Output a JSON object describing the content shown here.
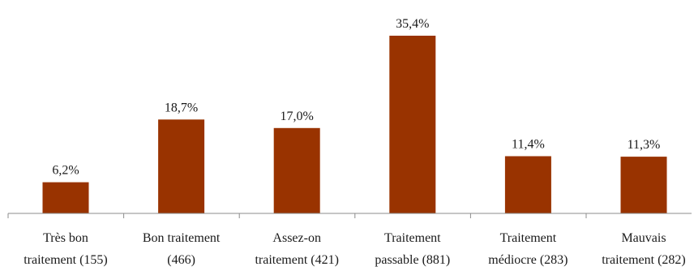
{
  "chart_data": {
    "type": "bar",
    "categories": [
      [
        "Très bon",
        "traitement (155)"
      ],
      [
        "Bon traitement",
        "(466)"
      ],
      [
        "Assez-on",
        "traitement (421)"
      ],
      [
        "Traitement",
        "passable (881)"
      ],
      [
        "Traitement",
        "médiocre (283)"
      ],
      [
        "Mauvais",
        "traitement (282)"
      ]
    ],
    "values": [
      6.2,
      18.7,
      17.0,
      35.4,
      11.4,
      11.3
    ],
    "value_labels": [
      "6,2%",
      "18,7%",
      "17,0%",
      "35,4%",
      "11,4%",
      "11,3%"
    ],
    "ylim": [
      0,
      40
    ],
    "grid": false,
    "bar_color": "#993300"
  }
}
